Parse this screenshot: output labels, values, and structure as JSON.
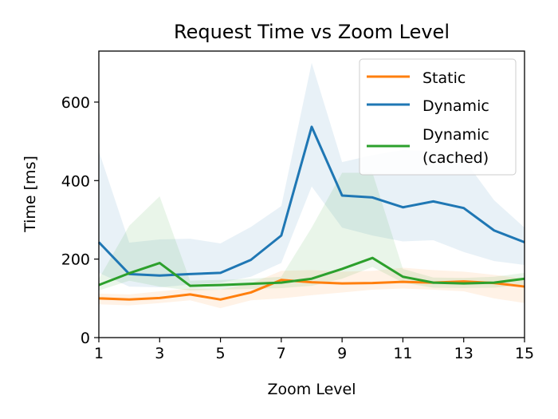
{
  "chart_data": {
    "type": "line",
    "title": "Request Time vs Zoom Level",
    "xlabel": "Zoom Level",
    "ylabel": "Time [ms]",
    "xlim": [
      1,
      15
    ],
    "ylim": [
      0,
      730
    ],
    "xticks": [
      1,
      3,
      5,
      7,
      9,
      11,
      13,
      15
    ],
    "yticks": [
      0,
      200,
      400,
      600
    ],
    "grid": false,
    "legend": "upper right",
    "x": [
      1,
      2,
      3,
      4,
      5,
      6,
      7,
      8,
      9,
      10,
      11,
      12,
      13,
      14,
      15
    ],
    "series": [
      {
        "name": "Static",
        "color": "#ff7f0e",
        "values": [
          100,
          97,
          101,
          110,
          97,
          115,
          147,
          141,
          138,
          139,
          142,
          140,
          143,
          139,
          130
        ],
        "band_lower": [
          85,
          82,
          88,
          95,
          75,
          95,
          100,
          108,
          115,
          122,
          125,
          122,
          118,
          100,
          88
        ],
        "band_upper": [
          112,
          110,
          118,
          125,
          122,
          138,
          170,
          172,
          168,
          170,
          178,
          172,
          168,
          160,
          150
        ]
      },
      {
        "name": "Dynamic",
        "color": "#1f77b4",
        "values": [
          243,
          162,
          158,
          162,
          165,
          198,
          260,
          537,
          362,
          357,
          332,
          347,
          330,
          273,
          243
        ],
        "band_lower": [
          165,
          130,
          128,
          135,
          140,
          155,
          190,
          385,
          280,
          260,
          245,
          248,
          218,
          195,
          185
        ],
        "band_upper": [
          475,
          242,
          250,
          252,
          240,
          282,
          335,
          700,
          447,
          465,
          478,
          475,
          455,
          350,
          280
        ]
      },
      {
        "name": "Dynamic\n(cached)",
        "color": "#2ca02c",
        "values": [
          134,
          164,
          190,
          132,
          134,
          137,
          140,
          150,
          175,
          203,
          155,
          140,
          138,
          140,
          150
        ],
        "band_lower": [
          120,
          145,
          130,
          120,
          122,
          124,
          126,
          132,
          150,
          180,
          140,
          127,
          126,
          127,
          135
        ],
        "band_upper": [
          150,
          285,
          360,
          145,
          147,
          150,
          155,
          280,
          420,
          420,
          175,
          153,
          152,
          155,
          165
        ]
      }
    ]
  }
}
